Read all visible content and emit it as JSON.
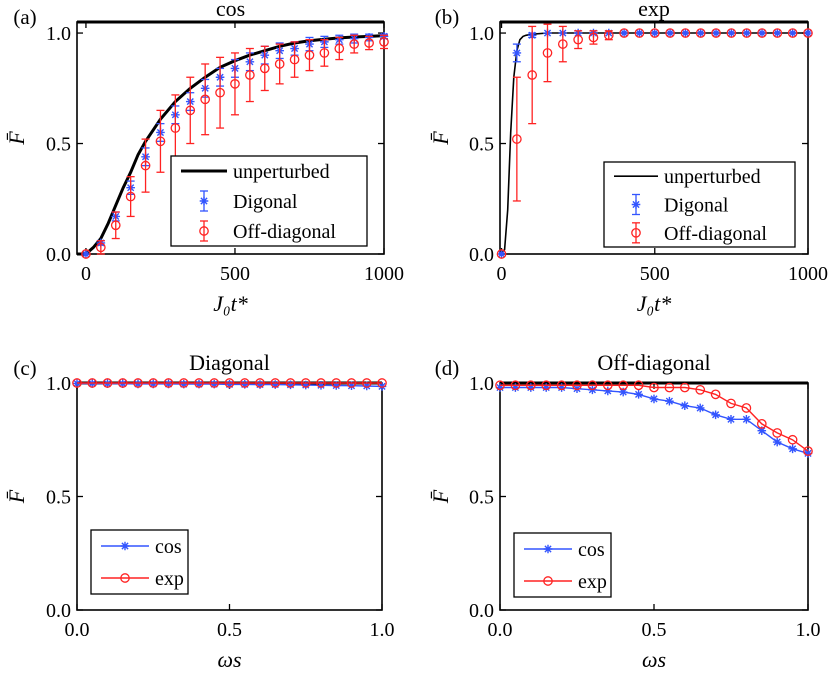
{
  "figure": {
    "panel_letters": [
      "(a)",
      "(b)",
      "(c)",
      "(d)"
    ]
  },
  "chart_data": [
    {
      "panel": "(a)",
      "title": "cos",
      "type": "line",
      "xlabel": "J₀t*",
      "ylabel": "F̄",
      "xlim": [
        -30,
        1000
      ],
      "ylim": [
        0,
        1.05
      ],
      "xticks": [
        0,
        500,
        1000
      ],
      "xtick_labels": [
        "0",
        "500",
        "1000"
      ],
      "yticks": [
        0,
        0.5,
        1.0
      ],
      "ytick_labels": [
        "0.0",
        "0.5",
        "1.0"
      ],
      "legend": {
        "position": "lower-right",
        "boxed": true,
        "labels": [
          "unperturbed",
          "Digonal",
          "Off-diagonal"
        ]
      },
      "unperturbed": {
        "x": [
          -30,
          0,
          25,
          50,
          75,
          100,
          125,
          150,
          175,
          200,
          250,
          300,
          350,
          400,
          450,
          500,
          550,
          600,
          650,
          700,
          750,
          800,
          850,
          900,
          950,
          1000
        ],
        "y": [
          0,
          0,
          0.03,
          0.07,
          0.14,
          0.22,
          0.3,
          0.37,
          0.45,
          0.51,
          0.61,
          0.69,
          0.75,
          0.8,
          0.845,
          0.875,
          0.9,
          0.92,
          0.94,
          0.955,
          0.965,
          0.972,
          0.978,
          0.982,
          0.985,
          0.988
        ],
        "color": "#000000"
      },
      "series": [
        {
          "name": "Digonal",
          "marker": "asterisk",
          "color": "#3355ff",
          "x": [
            0,
            50,
            100,
            150,
            200,
            250,
            300,
            350,
            400,
            450,
            500,
            550,
            600,
            650,
            700,
            750,
            800,
            850,
            900,
            950,
            1000
          ],
          "y": [
            0.0,
            0.05,
            0.17,
            0.3,
            0.44,
            0.55,
            0.63,
            0.69,
            0.75,
            0.8,
            0.84,
            0.87,
            0.9,
            0.92,
            0.93,
            0.95,
            0.96,
            0.97,
            0.975,
            0.98,
            0.985
          ],
          "err": [
            0.0,
            0.01,
            0.02,
            0.03,
            0.04,
            0.04,
            0.04,
            0.04,
            0.04,
            0.04,
            0.04,
            0.04,
            0.04,
            0.035,
            0.03,
            0.03,
            0.025,
            0.02,
            0.02,
            0.015,
            0.01
          ]
        },
        {
          "name": "Off-diagonal",
          "marker": "circle",
          "color": "#ff2222",
          "x": [
            0,
            50,
            100,
            150,
            200,
            250,
            300,
            350,
            400,
            450,
            500,
            550,
            600,
            650,
            700,
            750,
            800,
            850,
            900,
            950,
            1000
          ],
          "y": [
            0.0,
            0.03,
            0.13,
            0.26,
            0.4,
            0.51,
            0.57,
            0.65,
            0.7,
            0.73,
            0.77,
            0.81,
            0.84,
            0.86,
            0.88,
            0.9,
            0.91,
            0.93,
            0.95,
            0.955,
            0.96
          ],
          "err": [
            0.0,
            0.03,
            0.06,
            0.09,
            0.12,
            0.14,
            0.15,
            0.15,
            0.16,
            0.16,
            0.14,
            0.12,
            0.1,
            0.09,
            0.08,
            0.07,
            0.06,
            0.05,
            0.04,
            0.03,
            0.03
          ]
        }
      ]
    },
    {
      "panel": "(b)",
      "title": "exp",
      "type": "line",
      "xlabel": "J₀t*",
      "ylabel": "F̄",
      "xlim": [
        -5,
        1000
      ],
      "ylim": [
        0,
        1.05
      ],
      "xticks": [
        0,
        500,
        1000
      ],
      "xtick_labels": [
        "0",
        "500",
        "1000"
      ],
      "yticks": [
        0,
        0.5,
        1.0
      ],
      "ytick_labels": [
        "0.0",
        "0.5",
        "1.0"
      ],
      "legend": {
        "position": "lower-right",
        "boxed": true,
        "labels": [
          "unperturbed",
          "Digonal",
          "Off-diagonal"
        ]
      },
      "unperturbed": {
        "x": [
          -5,
          0,
          10,
          20,
          30,
          40,
          50,
          60,
          70,
          80,
          100,
          150,
          200,
          300,
          500,
          1000
        ],
        "y": [
          0,
          0,
          0.02,
          0.2,
          0.55,
          0.8,
          0.92,
          0.97,
          0.985,
          0.99,
          0.995,
          1.0,
          1.0,
          1.0,
          1.0,
          1.0
        ],
        "color": "#000000"
      },
      "series": [
        {
          "name": "Digonal",
          "marker": "asterisk",
          "color": "#3355ff",
          "x": [
            0,
            50,
            100,
            150,
            200,
            250,
            300,
            350,
            400,
            450,
            500,
            550,
            600,
            650,
            700,
            750,
            800,
            850,
            900,
            950,
            1000
          ],
          "y": [
            0.0,
            0.91,
            0.99,
            1.0,
            1.0,
            1.0,
            1.0,
            1.0,
            1.0,
            1.0,
            1.0,
            1.0,
            1.0,
            1.0,
            1.0,
            1.0,
            1.0,
            1.0,
            1.0,
            1.0,
            1.0
          ],
          "err": [
            0.0,
            0.04,
            0.01,
            0.0,
            0.0,
            0.0,
            0.0,
            0.0,
            0.0,
            0.0,
            0.0,
            0.0,
            0.0,
            0.0,
            0.0,
            0.0,
            0.0,
            0.0,
            0.0,
            0.0,
            0.0
          ]
        },
        {
          "name": "Off-diagonal",
          "marker": "circle",
          "color": "#ff2222",
          "x": [
            0,
            50,
            100,
            150,
            200,
            250,
            300,
            350,
            400,
            450,
            500,
            550,
            600,
            650,
            700,
            750,
            800,
            850,
            900,
            950,
            1000
          ],
          "y": [
            0.0,
            0.52,
            0.81,
            0.91,
            0.95,
            0.97,
            0.98,
            0.99,
            1.0,
            1.0,
            1.0,
            1.0,
            1.0,
            1.0,
            1.0,
            1.0,
            1.0,
            1.0,
            1.0,
            1.0,
            1.0
          ],
          "err": [
            0.0,
            0.28,
            0.22,
            0.13,
            0.08,
            0.04,
            0.03,
            0.02,
            0.0,
            0.0,
            0.0,
            0.0,
            0.0,
            0.0,
            0.0,
            0.0,
            0.0,
            0.0,
            0.0,
            0.0,
            0.0
          ]
        }
      ]
    },
    {
      "panel": "(c)",
      "title": "Diagonal",
      "type": "line",
      "xlabel": "ωs",
      "ylabel": "F̄",
      "xlim": [
        0,
        1.0
      ],
      "ylim": [
        0,
        1.0
      ],
      "xticks": [
        0,
        0.5,
        1.0
      ],
      "xtick_labels": [
        "0.0",
        "0.5",
        "1.0"
      ],
      "yticks": [
        0,
        0.5,
        1.0
      ],
      "ytick_labels": [
        "0.0",
        "0.5",
        "1.0"
      ],
      "legend": {
        "position": "lower-left",
        "boxed": true,
        "labels": [
          "cos",
          "exp"
        ]
      },
      "series": [
        {
          "name": "cos",
          "marker": "asterisk",
          "color": "#3355ff",
          "x": [
            0.0,
            0.05,
            0.1,
            0.15,
            0.2,
            0.25,
            0.3,
            0.35,
            0.4,
            0.45,
            0.5,
            0.55,
            0.6,
            0.65,
            0.7,
            0.75,
            0.8,
            0.85,
            0.9,
            0.95,
            1.0
          ],
          "y": [
            0.998,
            0.998,
            0.997,
            0.997,
            0.996,
            0.996,
            0.996,
            0.995,
            0.995,
            0.995,
            0.994,
            0.994,
            0.993,
            0.993,
            0.992,
            0.991,
            0.99,
            0.989,
            0.988,
            0.987,
            0.985
          ]
        },
        {
          "name": "exp",
          "marker": "circle",
          "color": "#ff2222",
          "x": [
            0.0,
            0.05,
            0.1,
            0.15,
            0.2,
            0.25,
            0.3,
            0.35,
            0.4,
            0.45,
            0.5,
            0.55,
            0.6,
            0.65,
            0.7,
            0.75,
            0.8,
            0.85,
            0.9,
            0.95,
            1.0
          ],
          "y": [
            1.0,
            1.0,
            1.0,
            1.0,
            1.0,
            1.0,
            1.0,
            1.0,
            1.0,
            1.0,
            1.0,
            1.0,
            1.0,
            1.0,
            1.0,
            1.0,
            1.0,
            1.0,
            1.0,
            1.0,
            1.0
          ]
        }
      ]
    },
    {
      "panel": "(d)",
      "title": "Off-diagonal",
      "type": "line",
      "xlabel": "ωs",
      "ylabel": "F̄",
      "xlim": [
        0,
        1.0
      ],
      "ylim": [
        0,
        1.0
      ],
      "xticks": [
        0,
        0.5,
        1.0
      ],
      "xtick_labels": [
        "0.0",
        "0.5",
        "1.0"
      ],
      "yticks": [
        0,
        0.5,
        1.0
      ],
      "ytick_labels": [
        "0.0",
        "0.5",
        "1.0"
      ],
      "legend": {
        "position": "lower-left",
        "boxed": true,
        "labels": [
          "cos",
          "exp"
        ]
      },
      "series": [
        {
          "name": "cos",
          "marker": "asterisk",
          "color": "#3355ff",
          "x": [
            0.0,
            0.05,
            0.1,
            0.15,
            0.2,
            0.25,
            0.3,
            0.35,
            0.4,
            0.45,
            0.5,
            0.55,
            0.6,
            0.65,
            0.7,
            0.75,
            0.8,
            0.85,
            0.9,
            0.95,
            1.0
          ],
          "y": [
            0.98,
            0.98,
            0.98,
            0.98,
            0.98,
            0.975,
            0.97,
            0.965,
            0.96,
            0.95,
            0.93,
            0.92,
            0.9,
            0.89,
            0.86,
            0.84,
            0.84,
            0.79,
            0.74,
            0.71,
            0.69
          ]
        },
        {
          "name": "exp",
          "marker": "circle",
          "color": "#ff2222",
          "x": [
            0.0,
            0.05,
            0.1,
            0.15,
            0.2,
            0.25,
            0.3,
            0.35,
            0.4,
            0.45,
            0.5,
            0.55,
            0.6,
            0.65,
            0.7,
            0.75,
            0.8,
            0.85,
            0.9,
            0.95,
            1.0
          ],
          "y": [
            0.99,
            0.99,
            0.99,
            0.99,
            0.99,
            0.99,
            0.99,
            0.99,
            0.99,
            0.99,
            0.98,
            0.98,
            0.98,
            0.97,
            0.95,
            0.91,
            0.89,
            0.82,
            0.78,
            0.75,
            0.7
          ]
        }
      ]
    }
  ]
}
